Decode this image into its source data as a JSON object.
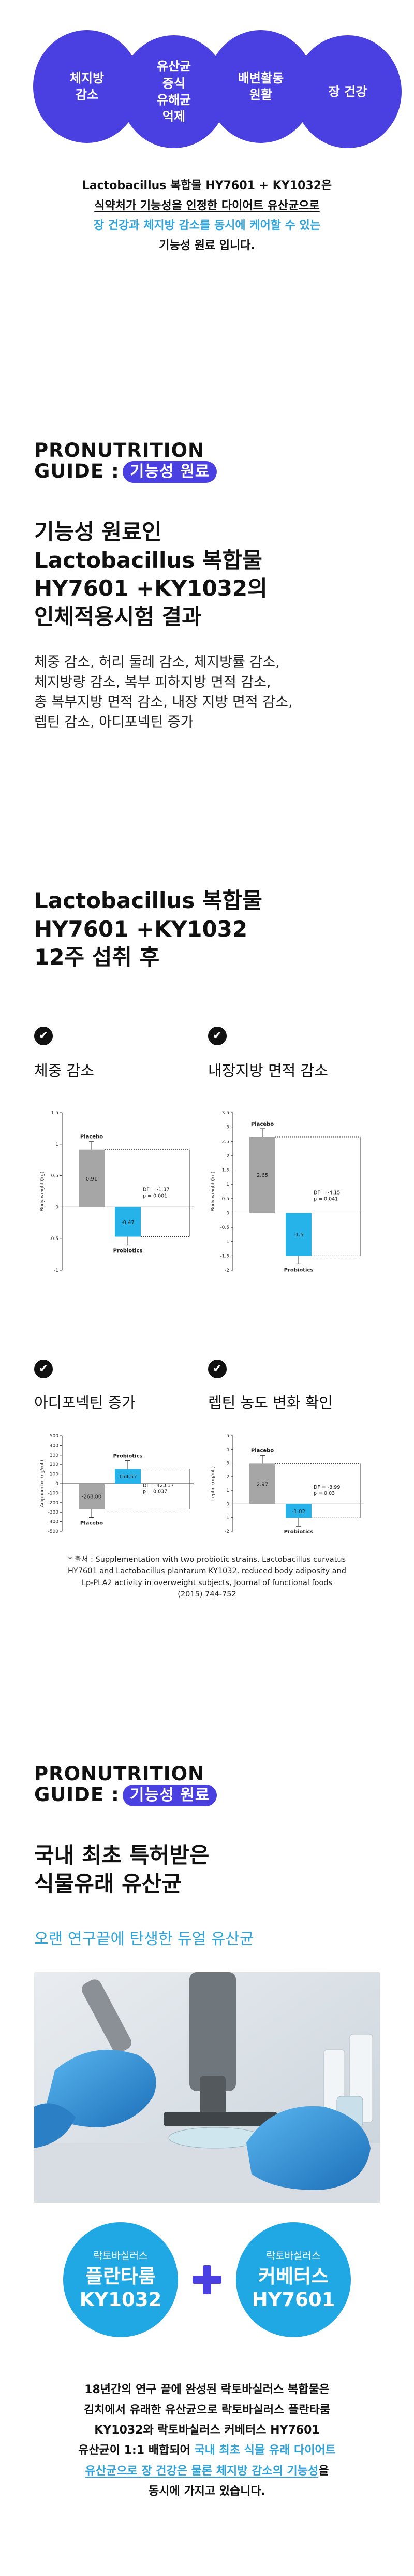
{
  "circles": [
    "체지방\n감소",
    "유산균\n증식\n유해균\n억제",
    "배변활동\n원활",
    "장 건강"
  ],
  "intro": {
    "l1": "Lactobacillus 복합물 HY7601 + KY1032은",
    "l2": "식약처가 기능성을 인정한 다이어트 유산균으로",
    "l3": "장 건강과 체지방 감소를 동시에 케어할 수 있는",
    "l4": "기능성 원료 입니다."
  },
  "guide": {
    "line1": "PRONUTRITION",
    "line2": "GUIDE :",
    "pill": "기능성 원료"
  },
  "section1": {
    "title": [
      "기능성 원료인",
      "Lactobacillus 복합물",
      "HY7601 +KY1032의",
      "인체적용시험 결과"
    ],
    "effects": [
      "체중 감소, 허리 둘레 감소, 체지방률 감소,",
      "체지방량 감소, 복부 피하지방 면적 감소,",
      "총 복부지방 면적 감소, 내장 지방 면적 감소,",
      "렙틴 감소, 아디포넥틴 증가"
    ]
  },
  "section2": {
    "title": [
      "Lactobacillus 복합물",
      "HY7601 +KY1032",
      "12주 섭취 후"
    ],
    "items": [
      "체중 감소",
      "내장지방 면적 감소",
      "아디포넥틴 증가",
      "렙틴 농도 변화 확인"
    ],
    "check_icon": "✔"
  },
  "chart_data": [
    {
      "type": "bar",
      "title": "",
      "ylabel": "Body weight (kg)",
      "ylim": [
        -1,
        1.5
      ],
      "yticks": [
        "1.5",
        "1",
        "0.5",
        "0",
        "-0.5",
        "-1"
      ],
      "categories": [
        "Placebo",
        "Probiotics"
      ],
      "values": [
        0.91,
        -0.47
      ],
      "value_labels": [
        "0.91",
        "-0.47"
      ],
      "annotation": [
        "DF = -1.37",
        "p = 0.001"
      ],
      "colors": [
        "#a6a6a6",
        "#25b3ea"
      ]
    },
    {
      "type": "bar",
      "title": "",
      "ylabel": "Body weight (kg)",
      "ylim": [
        -2,
        3.5
      ],
      "yticks": [
        "3.5",
        "3",
        "2.5",
        "2",
        "1.5",
        "1",
        "0.5",
        "0",
        "-0.5",
        "-1",
        "-1.5",
        "-2"
      ],
      "categories": [
        "Placebo",
        "Probiotics"
      ],
      "values": [
        2.65,
        -1.5
      ],
      "value_labels": [
        "2.65",
        "-1.5"
      ],
      "annotation": [
        "DF = -4.15",
        "p = 0.041"
      ],
      "colors": [
        "#a6a6a6",
        "#25b3ea"
      ]
    },
    {
      "type": "bar",
      "title": "",
      "ylabel": "Adiponectin (ng/mL)",
      "ylim": [
        -500,
        500
      ],
      "yticks": [
        "500",
        "400",
        "300",
        "200",
        "100",
        "0",
        "-100",
        "-200",
        "-300",
        "-400",
        "-500"
      ],
      "categories": [
        "Placebo",
        "Probiotics"
      ],
      "values": [
        -268.8,
        154.57
      ],
      "value_labels": [
        "-268.80",
        "154.57"
      ],
      "annotation": [
        "DF = 423.37",
        "p = 0.037"
      ],
      "colors": [
        "#a6a6a6",
        "#25b3ea"
      ]
    },
    {
      "type": "bar",
      "title": "",
      "ylabel": "Leptin (ng/mL)",
      "ylim": [
        -2,
        5
      ],
      "yticks": [
        "5",
        "4",
        "3",
        "2",
        "1",
        "0",
        "-1",
        "-2"
      ],
      "categories": [
        "Placebo",
        "Probiotics"
      ],
      "values": [
        2.97,
        -1.02
      ],
      "value_labels": [
        "2.97",
        "-1.02"
      ],
      "annotation": [
        "DF = -3.99",
        "p = 0.03"
      ],
      "colors": [
        "#a6a6a6",
        "#25b3ea"
      ]
    }
  ],
  "source": {
    "l1": "* 출처 : Supplementation with two probiotic strains, Lactobacillus curvatus",
    "l2": "HY7601 and Lactobacillus plantarum KY1032, reduced body adiposity and",
    "l3": "Lp-PLA2 activity in overweight subjects, Journal of functional foods",
    "l4": "(2015) 744-752"
  },
  "section3": {
    "title": [
      "국내 최초 특허받은",
      "식물유래 유산균"
    ],
    "subtitle": "오랜 연구끝에 탄생한 듀얼 유산균"
  },
  "strains": [
    {
      "small": "락토바실러스",
      "big1": "플란타룸",
      "big2": "KY1032"
    },
    {
      "small": "락토바실러스",
      "big1": "커베터스",
      "big2": "HY7601"
    }
  ],
  "outro": {
    "l1": "18년간의 연구 끝에 완성된 락토바실러스 복합물은",
    "l2": "김치에서 유래한 유산균으로 락토바실러스 플란타룸",
    "l3": "KY1032와 락토바실러스 커베터스 HY7601",
    "l4a": "유산균이 1:1 배합되어 ",
    "l4b": "국내 최초 식물 유래 다이어트",
    "l5": "유산균으로 장 건강은 물론 체지방 감소의 기능성",
    "l5b": "을",
    "l6": "동시에 가지고 있습니다."
  },
  "colors": {
    "primary": "#4a3fe0",
    "accent": "#2ea4dd",
    "placebo_bar": "#a6a6a6",
    "probiotics_bar": "#25b3ea"
  }
}
